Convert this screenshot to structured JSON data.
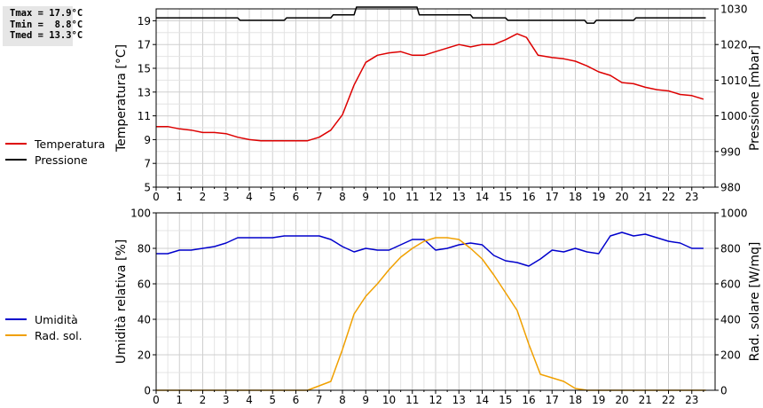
{
  "stats": {
    "tmax": "Tmax = 17.9°C",
    "tmin": "Tmin =  8.8°C",
    "tmed": "Tmed = 13.3°C"
  },
  "legend_top": [
    {
      "label": "Temperatura",
      "color": "#dd0000"
    },
    {
      "label": "Pressione",
      "color": "#000000"
    }
  ],
  "legend_bottom": [
    {
      "label": "Umidità",
      "color": "#0000cc"
    },
    {
      "label": "Rad. sol.",
      "color": "#f0a000"
    }
  ],
  "chart_data": [
    {
      "type": "line",
      "ylabel": "Temperatura [°C]",
      "y2label": "Pressione [mbar]",
      "xlim": [
        0,
        24
      ],
      "ylim": [
        5,
        20
      ],
      "y2lim": [
        980,
        1030
      ],
      "xticks": [
        "0",
        "1",
        "2",
        "3",
        "4",
        "5",
        "6",
        "7",
        "8",
        "9",
        "10",
        "11",
        "12",
        "13",
        "14",
        "15",
        "16",
        "17",
        "18",
        "19",
        "20",
        "21",
        "22",
        "23"
      ],
      "yticks": [
        "5",
        "7",
        "9",
        "11",
        "13",
        "15",
        "17",
        "19"
      ],
      "y2ticks": [
        "980",
        "990",
        "1000",
        "1010",
        "1020",
        "1030"
      ],
      "grid": true,
      "series": [
        {
          "name": "Temperatura",
          "axis": "left",
          "color": "#dd0000",
          "x": [
            0,
            0.5,
            1,
            1.5,
            2,
            2.5,
            3,
            3.5,
            4,
            4.5,
            5,
            5.5,
            6,
            6.5,
            7,
            7.5,
            8,
            8.5,
            9,
            9.5,
            10,
            10.5,
            11,
            11.5,
            12,
            12.5,
            13,
            13.5,
            14,
            14.5,
            15,
            15.5,
            15.9,
            16.4,
            17,
            17.5,
            18,
            18.5,
            19,
            19.5,
            20,
            20.5,
            21,
            21.5,
            22,
            22.5,
            23,
            23.5
          ],
          "y": [
            10.1,
            10.1,
            9.9,
            9.8,
            9.6,
            9.6,
            9.5,
            9.2,
            9.0,
            8.9,
            8.9,
            8.9,
            8.9,
            8.9,
            9.2,
            9.8,
            11.1,
            13.6,
            15.5,
            16.1,
            16.3,
            16.4,
            16.1,
            16.1,
            16.4,
            16.7,
            17.0,
            16.8,
            17.0,
            17.0,
            17.4,
            17.9,
            17.6,
            16.1,
            15.9,
            15.8,
            15.6,
            15.2,
            14.7,
            14.4,
            13.8,
            13.7,
            13.4,
            13.2,
            13.1,
            12.8,
            12.7,
            12.4
          ]
        },
        {
          "name": "Pressione",
          "axis": "right",
          "color": "#000000",
          "x": [
            0,
            3.5,
            3.6,
            5.5,
            5.6,
            7.5,
            7.6,
            8.5,
            8.6,
            11.2,
            11.3,
            13.5,
            13.6,
            15,
            15.1,
            18.4,
            18.5,
            18.8,
            18.9,
            20.5,
            20.6,
            23.6
          ],
          "y": [
            1027.5,
            1027.5,
            1026.8,
            1026.8,
            1027.5,
            1027.5,
            1028.3,
            1028.3,
            1030.5,
            1030.5,
            1028.3,
            1028.3,
            1027.5,
            1027.5,
            1026.8,
            1026.8,
            1026.0,
            1026.0,
            1026.8,
            1026.8,
            1027.5,
            1027.5
          ]
        }
      ]
    },
    {
      "type": "line",
      "ylabel": "Umidità relativa [%]",
      "y2label": "Rad. solare [W/mq]",
      "xlim": [
        0,
        24
      ],
      "ylim": [
        0,
        100
      ],
      "y2lim": [
        0,
        1000
      ],
      "xticks": [
        "0",
        "1",
        "2",
        "3",
        "4",
        "5",
        "6",
        "7",
        "8",
        "9",
        "10",
        "11",
        "12",
        "13",
        "14",
        "15",
        "16",
        "17",
        "18",
        "19",
        "20",
        "21",
        "22",
        "23"
      ],
      "yticks": [
        "0",
        "20",
        "40",
        "60",
        "80",
        "100"
      ],
      "y2ticks": [
        "0",
        "200",
        "400",
        "600",
        "800",
        "1000"
      ],
      "grid": true,
      "series": [
        {
          "name": "Umidità",
          "axis": "left",
          "color": "#0000cc",
          "x": [
            0,
            0.5,
            1,
            1.5,
            2,
            2.5,
            3,
            3.5,
            4,
            4.5,
            5,
            5.5,
            6,
            6.5,
            7,
            7.5,
            8,
            8.5,
            9,
            9.5,
            10,
            10.5,
            11,
            11.5,
            12,
            12.5,
            13,
            13.5,
            14,
            14.5,
            15,
            15.5,
            16,
            16.5,
            17,
            17.5,
            18,
            18.5,
            19,
            19.5,
            20,
            20.5,
            21,
            21.5,
            22,
            22.5,
            23,
            23.5
          ],
          "y": [
            77,
            77,
            79,
            79,
            80,
            81,
            83,
            86,
            86,
            86,
            86,
            87,
            87,
            87,
            87,
            85,
            81,
            78,
            80,
            79,
            79,
            82,
            85,
            85,
            79,
            80,
            82,
            83,
            82,
            76,
            73,
            72,
            70,
            74,
            79,
            78,
            80,
            78,
            77,
            87,
            89,
            87,
            88,
            86,
            84,
            83,
            80,
            80
          ]
        },
        {
          "name": "Rad. sol.",
          "axis": "right",
          "color": "#f0a000",
          "x": [
            0,
            6.5,
            7,
            7.5,
            8,
            8.5,
            9,
            9.5,
            10,
            10.5,
            11,
            11.5,
            12,
            12.5,
            13,
            13.5,
            14,
            14.5,
            15,
            15.5,
            16,
            16.5,
            17,
            17.5,
            18,
            18.5,
            23.6
          ],
          "y": [
            0,
            0,
            25,
            50,
            230,
            430,
            530,
            600,
            680,
            750,
            800,
            840,
            860,
            860,
            850,
            800,
            740,
            650,
            550,
            450,
            260,
            90,
            70,
            50,
            10,
            0,
            0
          ]
        }
      ]
    }
  ]
}
